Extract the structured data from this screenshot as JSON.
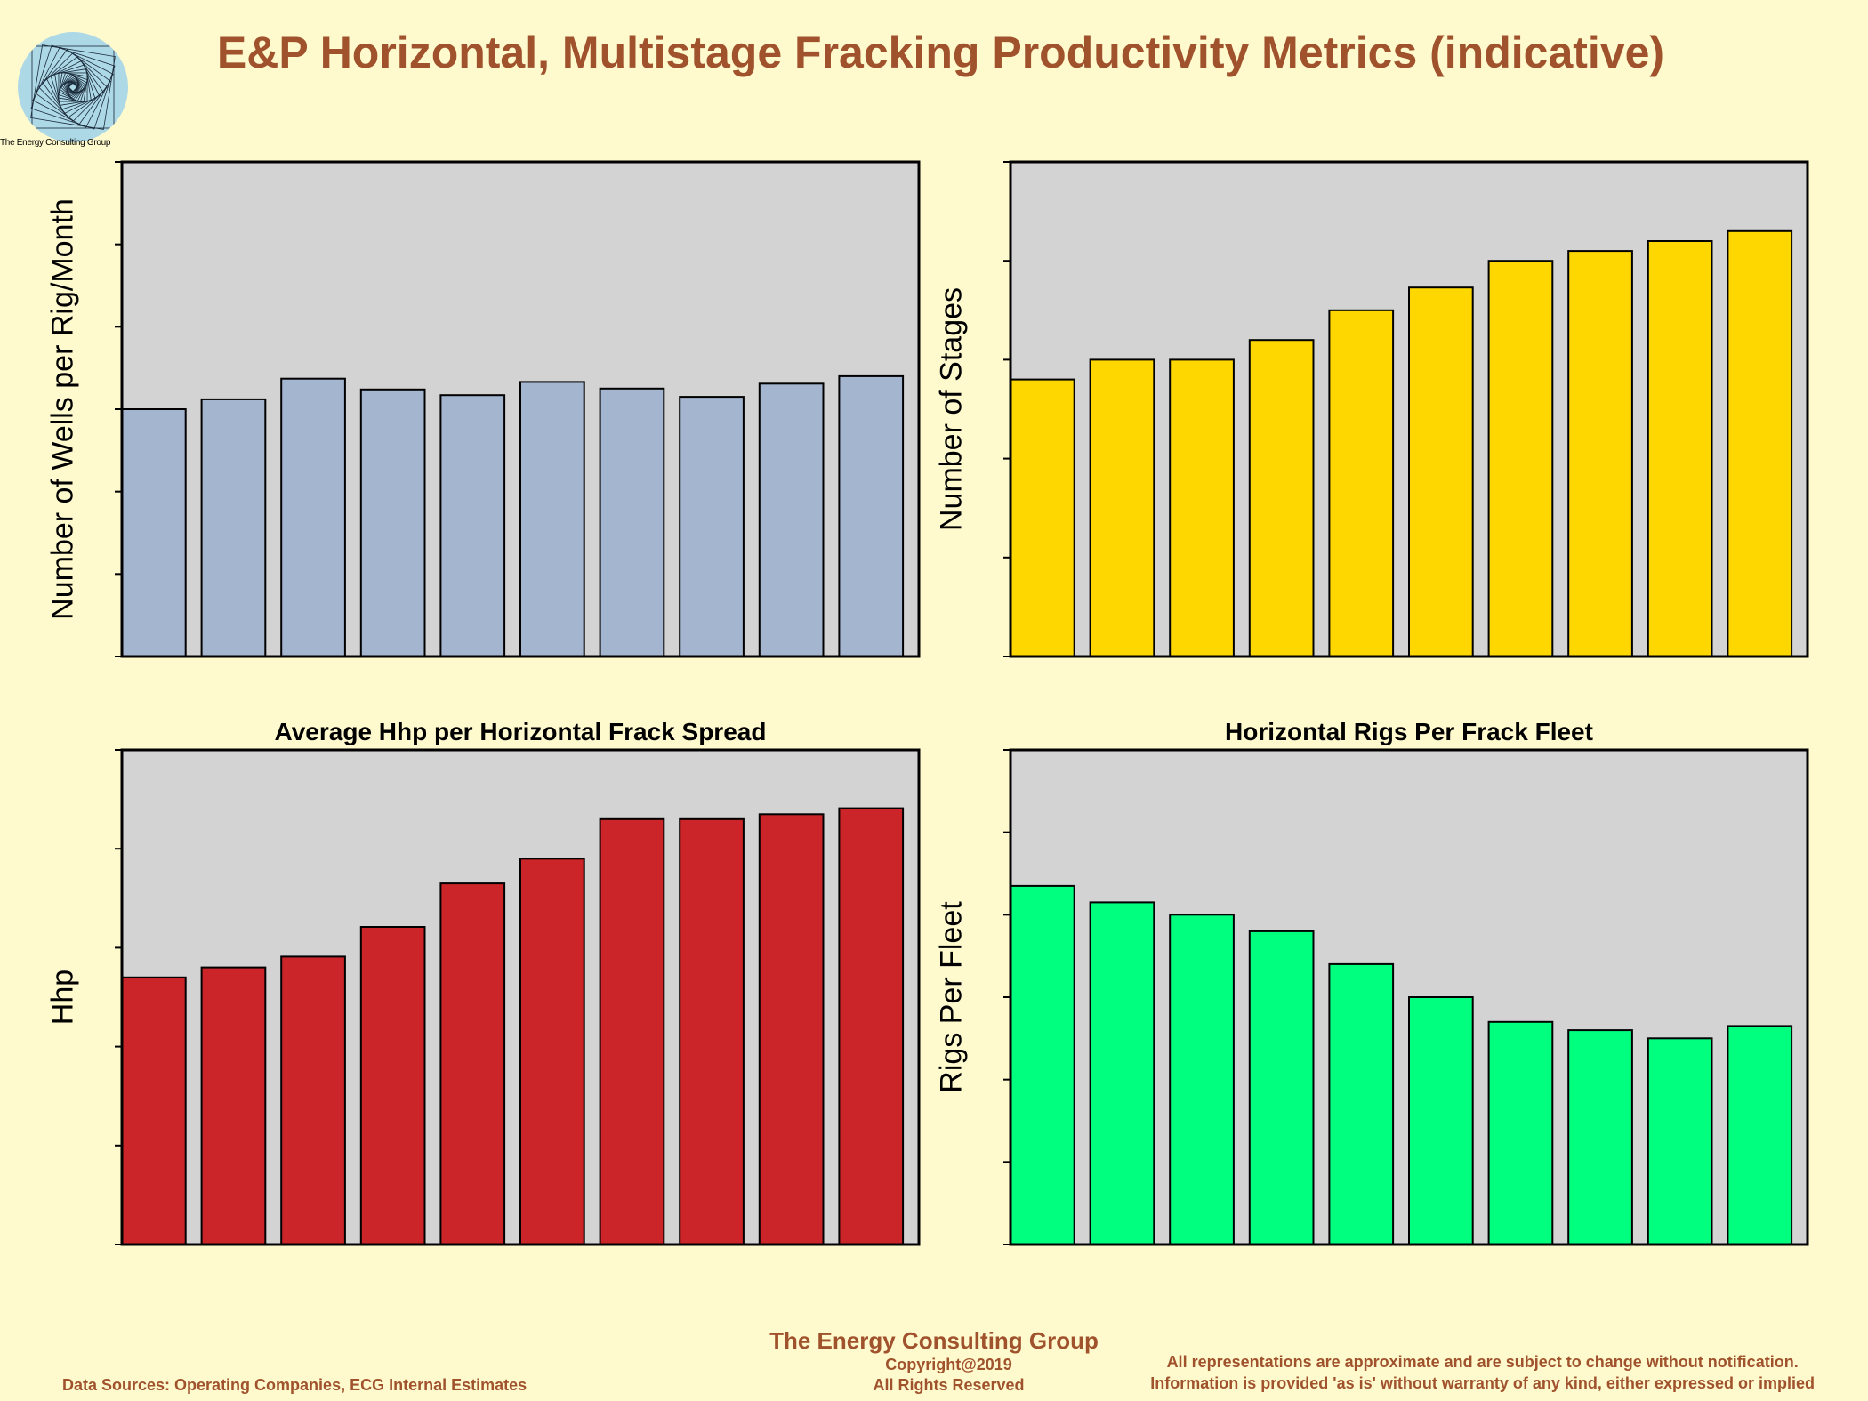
{
  "title": "E&P Horizontal, Multistage Fracking Productivity Metrics (indicative)",
  "logo": {
    "caption": "The Energy Consulting Group"
  },
  "footer": {
    "company": "The Energy Consulting Group",
    "copyright": "Copyright@2019",
    "rights": "All Rights Reserved",
    "sources": "Data Sources: Operating Companies, ECG Internal Estimates",
    "disclaimer_line1": "All representations are approximate and are subject to change without notification.",
    "disclaimer_line2": "Information is provided 'as is' without warranty of any kind, either expressed or implied"
  },
  "colors": {
    "background": "#fefacd",
    "plot_background": "#d3d3d3",
    "accent": "#a0522d"
  },
  "chart_data": [
    {
      "type": "bar",
      "title": "",
      "ylabel": "Number of Wells per Rig/Month",
      "ylim": [
        0,
        6
      ],
      "yticks": 7,
      "color": "#a3b5cf",
      "values": [
        3.0,
        3.12,
        3.37,
        3.24,
        3.17,
        3.33,
        3.25,
        3.15,
        3.31,
        3.4
      ]
    },
    {
      "type": "bar",
      "title": "",
      "ylabel": "Number of Stages",
      "ylim": [
        0,
        50
      ],
      "yticks": 6,
      "color": "#ffd700",
      "values": [
        28,
        30,
        30,
        32,
        35,
        37.3,
        40,
        41,
        42,
        43
      ]
    },
    {
      "type": "bar",
      "title": "Average Hhp per Horizontal Frack Spread",
      "ylabel": "Hhp",
      "ylim": [
        0,
        50000
      ],
      "yticks": 6,
      "color": "#cc2529",
      "values": [
        27000,
        28000,
        29100,
        32100,
        36500,
        39000,
        43000,
        43000,
        43500,
        44100
      ]
    },
    {
      "type": "bar",
      "title": "Horizontal Rigs Per Frack Fleet",
      "ylabel": "Rigs Per Fleet",
      "ylim": [
        0,
        6
      ],
      "yticks": 7,
      "color": "#00ff7f",
      "values": [
        4.35,
        4.15,
        4.0,
        3.8,
        3.4,
        3.0,
        2.7,
        2.6,
        2.5,
        2.65
      ]
    }
  ]
}
